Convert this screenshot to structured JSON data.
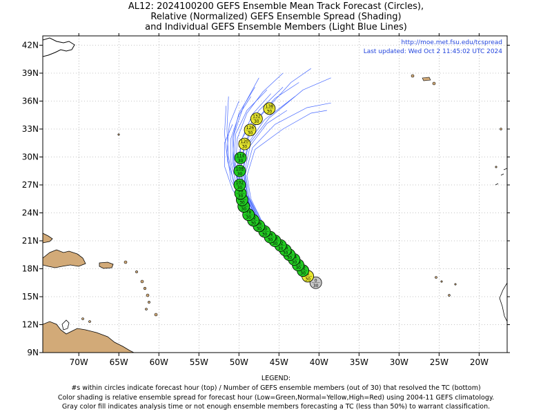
{
  "titles": [
    "AL12: 2024100200 GEFS Ensemble Mean Track Forecast (Circles),",
    "Relative (Normalized) GEFS Ensemble Spread (Shading)",
    "and Individual GEFS Ensemble Members (Light Blue Lines)"
  ],
  "info": {
    "url": "http://moe.met.fsu.edu/tcspread",
    "updated": "Last updated: Wed Oct 2 11:45:02 UTC 2024"
  },
  "legend": {
    "heading": "LEGEND:",
    "lines": [
      "#s within circles indicate forecast hour (top) / Number of GEFS ensemble members (out of 30) that resolved the TC (bottom)",
      "Color shading is relative ensemble spread for forecast hour (Low=Green,Normal=Yellow,High=Red) using 2004-11 GEFS climatology.",
      "Gray color fill indicates analysis time or not enough ensemble members forecasting a TC (less than 50%) to warrant classification."
    ]
  },
  "colors": {
    "low": "#22cc22",
    "normal": "#e8e830",
    "high": "#dd2222",
    "gray": "#c8c8c8",
    "member_lines": "#4466ff",
    "land": "#d2aa78"
  },
  "chart_data": {
    "type": "scatter",
    "title": "AL12: 2024100200 GEFS Ensemble Mean Track Forecast (Circles), Relative (Normalized) GEFS Ensemble Spread (Shading) and Individual GEFS Ensemble Members (Light Blue Lines)",
    "x_unit": "longitude (degrees east, negative = W)",
    "y_unit": "latitude (degrees north)",
    "xlim": [
      -74.5,
      -16.5
    ],
    "ylim": [
      9,
      43
    ],
    "x_ticks": [
      {
        "v": -70,
        "label": "70W"
      },
      {
        "v": -65,
        "label": "65W"
      },
      {
        "v": -60,
        "label": "60W"
      },
      {
        "v": -55,
        "label": "55W"
      },
      {
        "v": -50,
        "label": "50W"
      },
      {
        "v": -45,
        "label": "45W"
      },
      {
        "v": -40,
        "label": "40W"
      },
      {
        "v": -35,
        "label": "35W"
      },
      {
        "v": -30,
        "label": "30W"
      },
      {
        "v": -25,
        "label": "25W"
      },
      {
        "v": -20,
        "label": "20W"
      }
    ],
    "y_ticks": [
      {
        "v": 9,
        "label": "9N"
      },
      {
        "v": 12,
        "label": "12N"
      },
      {
        "v": 15,
        "label": "15N"
      },
      {
        "v": 18,
        "label": "18N"
      },
      {
        "v": 21,
        "label": "21N"
      },
      {
        "v": 24,
        "label": "24N"
      },
      {
        "v": 27,
        "label": "27N"
      },
      {
        "v": 30,
        "label": "30N"
      },
      {
        "v": 33,
        "label": "33N"
      },
      {
        "v": 36,
        "label": "36N"
      },
      {
        "v": 39,
        "label": "39N"
      },
      {
        "v": 42,
        "label": "42N"
      }
    ],
    "grid": true,
    "mean_track": [
      {
        "hour": 0,
        "members": 30,
        "lon": -40.4,
        "lat": 16.5,
        "spread": "gray"
      },
      {
        "hour": 6,
        "members": 30,
        "lon": -41.4,
        "lat": 17.2,
        "spread": "normal"
      },
      {
        "hour": 12,
        "members": 30,
        "lon": -42.0,
        "lat": 17.8,
        "spread": "low"
      },
      {
        "hour": 18,
        "members": 30,
        "lon": -42.6,
        "lat": 18.4,
        "spread": "low"
      },
      {
        "hour": 24,
        "members": 30,
        "lon": -43.1,
        "lat": 19.0,
        "spread": "low"
      },
      {
        "hour": 30,
        "members": 30,
        "lon": -43.7,
        "lat": 19.5,
        "spread": "low"
      },
      {
        "hour": 36,
        "members": 30,
        "lon": -44.2,
        "lat": 20.0,
        "spread": "low"
      },
      {
        "hour": 42,
        "members": 30,
        "lon": -44.8,
        "lat": 20.5,
        "spread": "low"
      },
      {
        "hour": 48,
        "members": 30,
        "lon": -45.5,
        "lat": 21.0,
        "spread": "low"
      },
      {
        "hour": 54,
        "members": 30,
        "lon": -46.1,
        "lat": 21.4,
        "spread": "low"
      },
      {
        "hour": 60,
        "members": 30,
        "lon": -46.8,
        "lat": 22.0,
        "spread": "low"
      },
      {
        "hour": 66,
        "members": 30,
        "lon": -47.5,
        "lat": 22.6,
        "spread": "low"
      },
      {
        "hour": 72,
        "members": 30,
        "lon": -48.2,
        "lat": 23.2,
        "spread": "low"
      },
      {
        "hour": 78,
        "members": 30,
        "lon": -48.8,
        "lat": 23.8,
        "spread": "low"
      },
      {
        "hour": 84,
        "members": 30,
        "lon": -49.4,
        "lat": 24.7,
        "spread": "low"
      },
      {
        "hour": 90,
        "members": 30,
        "lon": -49.6,
        "lat": 25.4,
        "spread": "low"
      },
      {
        "hour": 96,
        "members": 30,
        "lon": -49.8,
        "lat": 26.1,
        "spread": "low"
      },
      {
        "hour": 102,
        "members": 30,
        "lon": -49.9,
        "lat": 27.0,
        "spread": "low"
      },
      {
        "hour": 108,
        "members": 30,
        "lon": -49.9,
        "lat": 28.5,
        "spread": "low"
      },
      {
        "hour": 114,
        "members": 30,
        "lon": -49.8,
        "lat": 29.9,
        "spread": "low"
      },
      {
        "hour": 120,
        "members": 30,
        "lon": -49.3,
        "lat": 31.4,
        "spread": "normal"
      },
      {
        "hour": 126,
        "members": 30,
        "lon": -48.6,
        "lat": 32.9,
        "spread": "normal"
      },
      {
        "hour": 132,
        "members": 30,
        "lon": -47.8,
        "lat": 34.1,
        "spread": "normal"
      },
      {
        "hour": 138,
        "members": 30,
        "lon": -46.2,
        "lat": 35.2,
        "spread": "normal"
      }
    ],
    "member_tracks": [
      [
        [
          -40.4,
          16.5
        ],
        [
          -43,
          19
        ],
        [
          -46,
          21.5
        ],
        [
          -48.5,
          23.8
        ],
        [
          -50.2,
          26.5
        ],
        [
          -51,
          29.5
        ],
        [
          -51,
          32
        ],
        [
          -50,
          34.5
        ],
        [
          -48.5,
          36.5
        ]
      ],
      [
        [
          -40.4,
          16.5
        ],
        [
          -43,
          19.2
        ],
        [
          -46.5,
          22
        ],
        [
          -49,
          24.5
        ],
        [
          -51,
          27.5
        ],
        [
          -51.5,
          30.5
        ],
        [
          -51.2,
          33.5
        ],
        [
          -50,
          36
        ]
      ],
      [
        [
          -40.4,
          16.5
        ],
        [
          -43.2,
          19
        ],
        [
          -46.3,
          21.7
        ],
        [
          -48.8,
          24.2
        ],
        [
          -50.6,
          27
        ],
        [
          -51.3,
          30
        ],
        [
          -51.5,
          33
        ],
        [
          -51.3,
          36.5
        ]
      ],
      [
        [
          -40.4,
          16.5
        ],
        [
          -43,
          19
        ],
        [
          -46,
          21.5
        ],
        [
          -48.3,
          23.9
        ],
        [
          -49.8,
          26.5
        ],
        [
          -50.6,
          29.5
        ],
        [
          -50.4,
          32.5
        ],
        [
          -49,
          35
        ],
        [
          -46.5,
          37.2
        ]
      ],
      [
        [
          -40.4,
          16.5
        ],
        [
          -42.8,
          18.9
        ],
        [
          -45.8,
          21.4
        ],
        [
          -48,
          23.8
        ],
        [
          -49.6,
          26.3
        ],
        [
          -50.2,
          29
        ],
        [
          -49.6,
          32
        ],
        [
          -47.5,
          35
        ],
        [
          -44.5,
          37.5
        ]
      ],
      [
        [
          -40.4,
          16.5
        ],
        [
          -42.8,
          18.8
        ],
        [
          -45.5,
          21.2
        ],
        [
          -47.8,
          23.6
        ],
        [
          -49.3,
          26
        ],
        [
          -49.8,
          28.7
        ],
        [
          -49.2,
          31.5
        ],
        [
          -47.2,
          34.5
        ],
        [
          -43.5,
          38
        ],
        [
          -41,
          39.5
        ]
      ],
      [
        [
          -40.4,
          16.5
        ],
        [
          -42.6,
          18.8
        ],
        [
          -45.3,
          21
        ],
        [
          -47.6,
          23.4
        ],
        [
          -49,
          25.8
        ],
        [
          -49.5,
          28.5
        ],
        [
          -48.8,
          31.3
        ],
        [
          -46.2,
          34.2
        ],
        [
          -42,
          37.2
        ],
        [
          -38.5,
          38.5
        ]
      ],
      [
        [
          -40.4,
          16.5
        ],
        [
          -42.6,
          18.7
        ],
        [
          -45.2,
          21
        ],
        [
          -47.3,
          23.3
        ],
        [
          -48.7,
          25.6
        ],
        [
          -49.2,
          28.2
        ],
        [
          -48.3,
          31
        ],
        [
          -45.5,
          33.5
        ],
        [
          -41.5,
          35.3
        ],
        [
          -38.5,
          35.8
        ]
      ],
      [
        [
          -40.4,
          16.5
        ],
        [
          -42.6,
          18.7
        ],
        [
          -45,
          20.9
        ],
        [
          -47.2,
          23.2
        ],
        [
          -48.5,
          25.5
        ],
        [
          -49,
          28
        ],
        [
          -48,
          30.8
        ],
        [
          -44.5,
          33
        ],
        [
          -41,
          34.7
        ],
        [
          -39,
          35
        ]
      ],
      [
        [
          -40.4,
          16.5
        ],
        [
          -42.7,
          18.8
        ],
        [
          -45.4,
          21.1
        ],
        [
          -47.8,
          23.5
        ],
        [
          -49.2,
          26
        ],
        [
          -49.8,
          28.8
        ],
        [
          -49.3,
          31.5
        ],
        [
          -47.8,
          34
        ],
        [
          -45.5,
          36.3
        ],
        [
          -42.5,
          38
        ]
      ],
      [
        [
          -40.4,
          16.5
        ],
        [
          -42.8,
          18.9
        ],
        [
          -45.6,
          21.3
        ],
        [
          -48,
          23.8
        ],
        [
          -49.6,
          26.4
        ],
        [
          -50.4,
          29.2
        ],
        [
          -50.2,
          32
        ],
        [
          -49,
          34.7
        ],
        [
          -47,
          37
        ],
        [
          -44.5,
          39
        ]
      ],
      [
        [
          -40.4,
          16.5
        ],
        [
          -43.1,
          19.1
        ],
        [
          -46.1,
          21.7
        ],
        [
          -48.6,
          24.2
        ],
        [
          -50.4,
          26.8
        ],
        [
          -51.4,
          29.5
        ],
        [
          -51.8,
          32.5
        ],
        [
          -51.6,
          35.5
        ]
      ],
      [
        [
          -40.4,
          16.5
        ],
        [
          -43.1,
          19
        ],
        [
          -46.2,
          21.6
        ],
        [
          -48.9,
          24
        ],
        [
          -50.8,
          26.5
        ],
        [
          -51.8,
          29
        ],
        [
          -51.8,
          31.5
        ],
        [
          -50.8,
          33.5
        ]
      ],
      [
        [
          -40.4,
          16.5
        ],
        [
          -42.7,
          18.8
        ],
        [
          -45.4,
          21
        ],
        [
          -47.6,
          23.4
        ],
        [
          -48.9,
          25.8
        ],
        [
          -49.3,
          28.4
        ],
        [
          -48.6,
          31.2
        ],
        [
          -46.5,
          33.6
        ],
        [
          -44,
          35
        ]
      ],
      [
        [
          -40.4,
          16.5
        ],
        [
          -42.9,
          18.9
        ],
        [
          -45.7,
          21.3
        ],
        [
          -48.1,
          23.7
        ],
        [
          -49.7,
          26.2
        ],
        [
          -50.6,
          29
        ],
        [
          -50.8,
          32
        ],
        [
          -50,
          34.7
        ],
        [
          -48,
          37.5
        ]
      ],
      [
        [
          -40.4,
          16.5
        ],
        [
          -42.7,
          18.8
        ],
        [
          -45.3,
          21
        ],
        [
          -47.5,
          23.4
        ],
        [
          -48.9,
          25.9
        ],
        [
          -49.5,
          28.6
        ],
        [
          -48.9,
          31.4
        ],
        [
          -46.8,
          34
        ],
        [
          -43,
          36.5
        ]
      ],
      [
        [
          -40.4,
          16.5
        ],
        [
          -42.8,
          18.9
        ],
        [
          -45.6,
          21.3
        ],
        [
          -47.9,
          23.7
        ],
        [
          -49.4,
          26.1
        ],
        [
          -50,
          28.8
        ],
        [
          -49.7,
          31.8
        ],
        [
          -48.3,
          34.6
        ],
        [
          -46,
          36.8
        ]
      ],
      [
        [
          -40.4,
          16.5
        ],
        [
          -43,
          19
        ],
        [
          -46,
          21.6
        ],
        [
          -48.4,
          24.1
        ],
        [
          -50,
          26.7
        ],
        [
          -50.8,
          29.5
        ],
        [
          -50.6,
          32.5
        ],
        [
          -49.4,
          35.5
        ],
        [
          -47.5,
          38.5
        ]
      ]
    ]
  }
}
